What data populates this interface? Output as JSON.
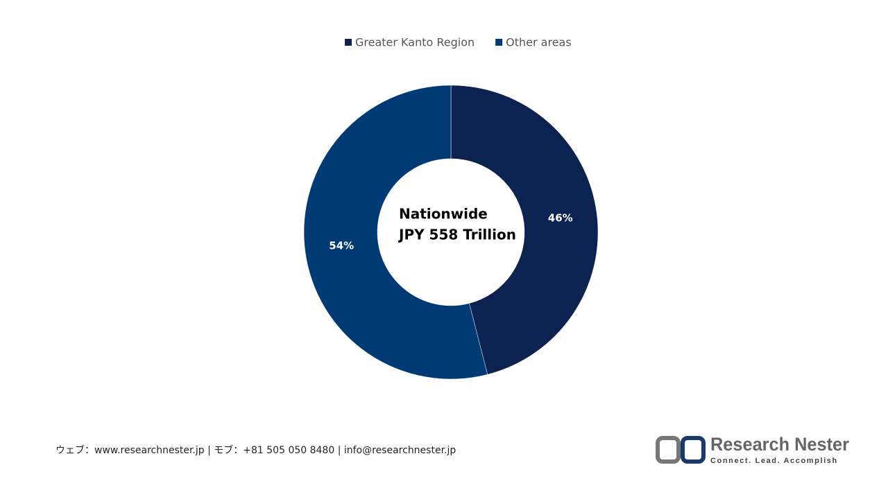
{
  "chart_data": {
    "type": "donut",
    "categories": [
      "Greater Kanto Region",
      "Other areas"
    ],
    "values": [
      46,
      54
    ],
    "value_labels": [
      "46%",
      "54%"
    ],
    "colors": [
      "#0c2250",
      "#003a75"
    ],
    "center_text": [
      "Nationwide",
      "JPY 558 Trillion"
    ],
    "legend": "top"
  },
  "footer": {
    "contact": "ウェブ：www.researchnester.jp | モブ：+81 505 050 8480 | info@researchnester.jp"
  },
  "logo": {
    "name": "Research Nester",
    "tagline": "Connect. Lead. Accomplish"
  }
}
